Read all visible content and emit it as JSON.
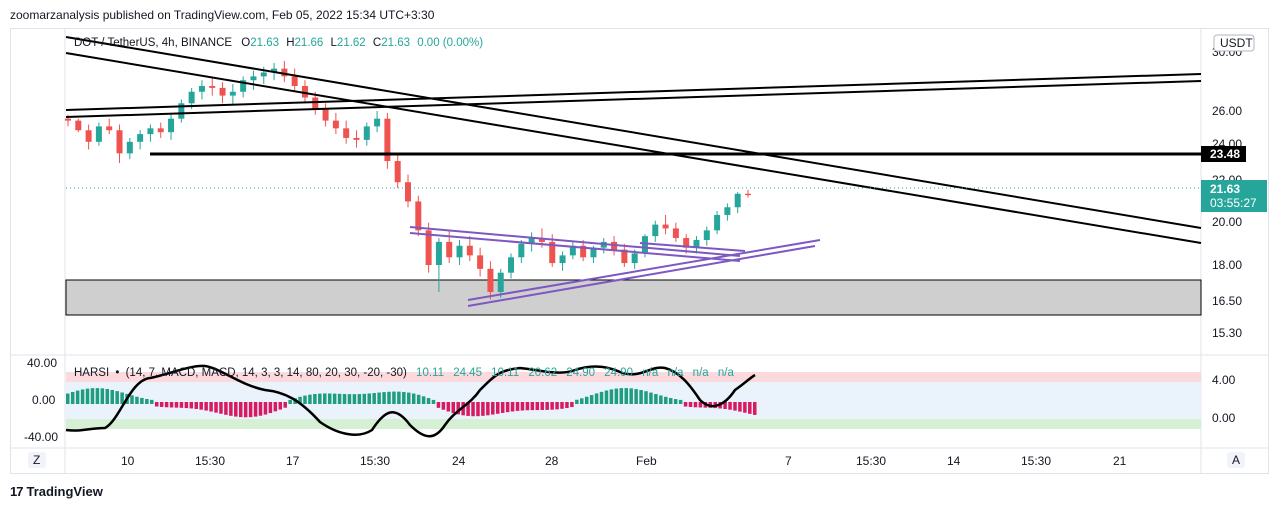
{
  "attribution": "zoomarzanalysis published on TradingView.com, Feb 05, 2022 15:34 UTC+3:30",
  "footer": {
    "logo": "17",
    "brand": "TradingView"
  },
  "legend": {
    "symbol": "DOT / TetherUS, 4h, BINANCE",
    "open_label": "O",
    "open": "21.63",
    "high_label": "H",
    "high": "21.66",
    "low_label": "L",
    "low": "21.62",
    "close_label": "C",
    "close": "21.63",
    "change": "0.00 (0.00%)"
  },
  "currency_button": "USDT",
  "price_axis": {
    "ticks": [
      "30.00",
      "26.00",
      "24.00",
      "22.00",
      "20.00",
      "18.00",
      "16.50",
      "15.30"
    ],
    "level_badge": "23.48",
    "current_price": "21.63",
    "countdown": "03:55:27"
  },
  "indicator": {
    "legend_name": "HARSI",
    "legend_params": "(14, 7, MACD, MACD, 14, 3, 3, 14, 80, 20, 30, -20, -30)",
    "values": [
      "10.11",
      "24.45",
      "10.11",
      "20.62",
      "24.90",
      "24.90",
      "n/a",
      "n/a",
      "n/a",
      "n/a"
    ],
    "left_ticks": [
      "40.00",
      "0.00",
      "-40.00"
    ],
    "right_ticks": [
      "4.00",
      "0.00"
    ]
  },
  "time_axis": [
    "10",
    "15:30",
    "17",
    "15:30",
    "24",
    "28",
    "Feb",
    "7",
    "15:30",
    "14",
    "15:30",
    "21"
  ],
  "corner_buttons": {
    "left": "Z",
    "right": "A"
  },
  "colors": {
    "up": "#26a69a",
    "down": "#ef5350",
    "indicator_up": "#1e9e7e",
    "indicator_down": "#d81b60",
    "purple": "#7e57c2",
    "black": "#000000",
    "zone_gray": "#cfcfcf",
    "price_badge": "#26a69a"
  },
  "chart_data": {
    "type": "candlestick",
    "timeframe": "4h",
    "ohlc_points": [
      [
        25.6,
        25.8,
        25.2,
        25.5
      ],
      [
        25.5,
        25.6,
        24.9,
        25.0
      ],
      [
        25.0,
        25.3,
        24.0,
        24.4
      ],
      [
        24.4,
        25.4,
        24.2,
        25.2
      ],
      [
        25.2,
        25.6,
        24.8,
        25.0
      ],
      [
        25.0,
        25.3,
        23.3,
        23.8
      ],
      [
        23.8,
        24.6,
        23.5,
        24.4
      ],
      [
        24.4,
        25.0,
        24.0,
        24.8
      ],
      [
        24.8,
        25.3,
        24.4,
        25.1
      ],
      [
        25.1,
        25.4,
        24.6,
        24.9
      ],
      [
        24.9,
        25.8,
        24.5,
        25.6
      ],
      [
        25.6,
        26.6,
        25.4,
        26.4
      ],
      [
        26.4,
        27.2,
        26.1,
        27.0
      ],
      [
        27.0,
        27.6,
        26.6,
        27.3
      ],
      [
        27.3,
        27.8,
        26.8,
        27.2
      ],
      [
        27.2,
        27.5,
        26.4,
        26.8
      ],
      [
        26.8,
        27.4,
        26.3,
        27.0
      ],
      [
        27.0,
        27.8,
        26.7,
        27.6
      ],
      [
        27.6,
        28.1,
        27.1,
        27.8
      ],
      [
        27.8,
        28.3,
        27.4,
        28.0
      ],
      [
        28.0,
        28.5,
        27.6,
        28.2
      ],
      [
        28.2,
        28.6,
        27.5,
        27.8
      ],
      [
        27.8,
        28.2,
        27.0,
        27.3
      ],
      [
        27.3,
        27.6,
        26.4,
        26.7
      ],
      [
        26.7,
        27.0,
        25.8,
        26.1
      ],
      [
        26.1,
        26.4,
        25.2,
        25.5
      ],
      [
        25.5,
        25.9,
        24.8,
        25.1
      ],
      [
        25.1,
        25.5,
        24.3,
        24.6
      ],
      [
        24.6,
        25.0,
        24.1,
        24.5
      ],
      [
        24.5,
        25.4,
        24.2,
        25.2
      ],
      [
        25.2,
        26.0,
        24.9,
        25.6
      ],
      [
        25.6,
        25.9,
        23.0,
        23.4
      ],
      [
        23.4,
        23.8,
        22.0,
        22.3
      ],
      [
        22.3,
        22.7,
        21.0,
        21.3
      ],
      [
        21.3,
        21.6,
        19.5,
        19.8
      ],
      [
        19.8,
        20.2,
        17.6,
        18.0
      ],
      [
        18.0,
        19.4,
        16.6,
        19.2
      ],
      [
        19.2,
        19.8,
        18.1,
        18.4
      ],
      [
        18.4,
        19.3,
        18.0,
        19.0
      ],
      [
        19.0,
        19.5,
        18.2,
        18.5
      ],
      [
        18.5,
        18.9,
        17.4,
        17.8
      ],
      [
        17.8,
        18.2,
        16.2,
        16.6
      ],
      [
        16.6,
        17.8,
        16.3,
        17.6
      ],
      [
        17.6,
        18.6,
        17.3,
        18.4
      ],
      [
        18.4,
        19.3,
        18.1,
        19.1
      ],
      [
        19.1,
        19.7,
        18.7,
        19.4
      ],
      [
        19.4,
        19.9,
        18.9,
        19.2
      ],
      [
        19.2,
        19.6,
        17.9,
        18.1
      ],
      [
        18.1,
        18.7,
        17.7,
        18.5
      ],
      [
        18.5,
        19.2,
        18.3,
        19.0
      ],
      [
        19.0,
        19.3,
        18.2,
        18.4
      ],
      [
        18.4,
        19.0,
        18.1,
        18.9
      ],
      [
        18.9,
        19.4,
        18.6,
        19.2
      ],
      [
        19.2,
        19.5,
        18.5,
        18.8
      ],
      [
        18.8,
        19.1,
        17.9,
        18.1
      ],
      [
        18.1,
        18.8,
        17.8,
        18.6
      ],
      [
        18.6,
        19.6,
        18.4,
        19.5
      ],
      [
        19.5,
        20.3,
        19.2,
        20.1
      ],
      [
        20.1,
        20.6,
        19.6,
        19.9
      ],
      [
        19.9,
        20.2,
        19.2,
        19.4
      ],
      [
        19.4,
        19.6,
        18.6,
        18.9
      ],
      [
        18.9,
        19.5,
        18.6,
        19.3
      ],
      [
        19.3,
        20.0,
        19.0,
        19.8
      ],
      [
        19.8,
        20.8,
        19.6,
        20.6
      ],
      [
        20.6,
        21.2,
        20.3,
        21.0
      ],
      [
        21.0,
        21.8,
        20.7,
        21.7
      ],
      [
        21.7,
        21.9,
        21.5,
        21.63
      ]
    ],
    "horizontal_level": 23.48,
    "support_zone": [
      16.1,
      17.4
    ],
    "indicator_range_left": [
      -40,
      40
    ]
  }
}
